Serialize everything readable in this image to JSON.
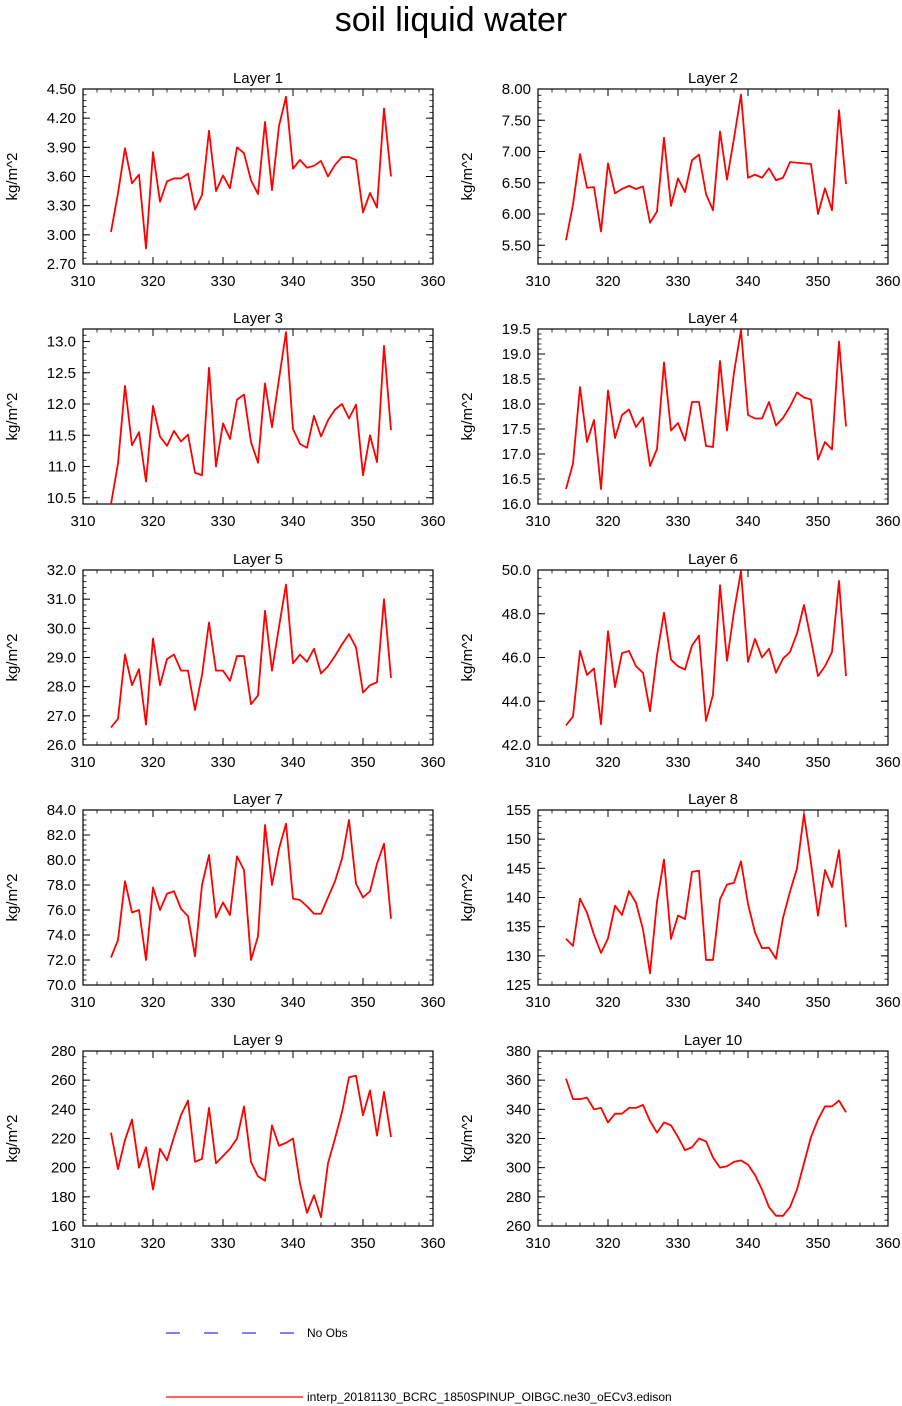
{
  "title": "soil liquid water",
  "chart_data": [
    {
      "type": "line",
      "title": "Layer 1",
      "ylabel": "kg/m^2",
      "xlim": [
        310,
        360
      ],
      "ylim": [
        2.7,
        4.5
      ],
      "xticks": [
        "310",
        "320",
        "330",
        "340",
        "350",
        "360"
      ],
      "yticks": [
        "2.70",
        "3.00",
        "3.30",
        "3.60",
        "3.90",
        "4.20",
        "4.50"
      ],
      "x": [
        314,
        315,
        316,
        317,
        318,
        319,
        320,
        321,
        322,
        323,
        324,
        325,
        326,
        327,
        328,
        329,
        330,
        331,
        332,
        333,
        334,
        335,
        336,
        337,
        338,
        339,
        340,
        341,
        342,
        343,
        344,
        345,
        346,
        347,
        348,
        349,
        350,
        351,
        352,
        353,
        354
      ],
      "series": [
        {
          "values": [
            3.03,
            3.43,
            3.89,
            3.53,
            3.62,
            2.86,
            3.85,
            3.34,
            3.55,
            3.58,
            3.58,
            3.63,
            3.26,
            3.41,
            4.07,
            3.45,
            3.61,
            3.48,
            3.9,
            3.84,
            3.56,
            3.42,
            4.16,
            3.46,
            4.12,
            4.42,
            3.68,
            3.77,
            3.69,
            3.71,
            3.76,
            3.6,
            3.72,
            3.8,
            3.8,
            3.77,
            3.23,
            3.43,
            3.28,
            4.3,
            3.6
          ]
        }
      ]
    },
    {
      "type": "line",
      "title": "Layer 2",
      "ylabel": "kg/m^2",
      "xlim": [
        310,
        360
      ],
      "ylim": [
        5.2,
        8.0
      ],
      "xticks": [
        "310",
        "320",
        "330",
        "340",
        "350",
        "360"
      ],
      "yticks": [
        "5.50",
        "6.00",
        "6.50",
        "7.00",
        "7.50",
        "8.00"
      ],
      "x": [
        314,
        315,
        316,
        317,
        318,
        319,
        320,
        321,
        322,
        323,
        324,
        325,
        326,
        327,
        328,
        329,
        330,
        331,
        332,
        333,
        334,
        335,
        336,
        337,
        338,
        339,
        340,
        341,
        342,
        343,
        344,
        345,
        346,
        347,
        348,
        349,
        350,
        351,
        352,
        353,
        354
      ],
      "series": [
        {
          "values": [
            5.58,
            6.15,
            6.96,
            6.42,
            6.43,
            5.72,
            6.81,
            6.33,
            6.4,
            6.45,
            6.4,
            6.44,
            5.86,
            6.04,
            7.22,
            6.13,
            6.57,
            6.35,
            6.86,
            6.95,
            6.32,
            6.06,
            7.32,
            6.55,
            7.21,
            7.91,
            6.58,
            6.63,
            6.58,
            6.73,
            6.54,
            6.58,
            6.83,
            6.82,
            6.81,
            6.8,
            6.0,
            6.41,
            6.06,
            7.66,
            6.48
          ]
        }
      ]
    },
    {
      "type": "line",
      "title": "Layer 3",
      "ylabel": "kg/m^2",
      "xlim": [
        310,
        360
      ],
      "ylim": [
        10.4,
        13.2
      ],
      "xticks": [
        "310",
        "320",
        "330",
        "340",
        "350",
        "360"
      ],
      "yticks": [
        "10.5",
        "11.0",
        "11.5",
        "12.0",
        "12.5",
        "13.0"
      ],
      "x": [
        314,
        315,
        316,
        317,
        318,
        319,
        320,
        321,
        322,
        323,
        324,
        325,
        326,
        327,
        328,
        329,
        330,
        331,
        332,
        333,
        334,
        335,
        336,
        337,
        338,
        339,
        340,
        341,
        342,
        343,
        344,
        345,
        346,
        347,
        348,
        349,
        350,
        351,
        352,
        353,
        354
      ],
      "series": [
        {
          "values": [
            10.4,
            11.05,
            12.29,
            11.34,
            11.55,
            10.76,
            11.97,
            11.48,
            11.33,
            11.57,
            11.4,
            11.51,
            10.9,
            10.86,
            12.58,
            11.0,
            11.69,
            11.44,
            12.07,
            12.15,
            11.39,
            11.06,
            12.33,
            11.63,
            12.4,
            13.15,
            11.6,
            11.36,
            11.3,
            11.81,
            11.48,
            11.74,
            11.91,
            12.0,
            11.77,
            11.99,
            10.86,
            11.5,
            11.07,
            12.93,
            11.58
          ]
        }
      ]
    },
    {
      "type": "line",
      "title": "Layer 4",
      "ylabel": "kg/m^2",
      "xlim": [
        310,
        360
      ],
      "ylim": [
        16.0,
        19.5
      ],
      "xticks": [
        "310",
        "320",
        "330",
        "340",
        "350",
        "360"
      ],
      "yticks": [
        "16.0",
        "16.5",
        "17.0",
        "17.5",
        "18.0",
        "18.5",
        "19.0",
        "19.5"
      ],
      "x": [
        314,
        315,
        316,
        317,
        318,
        319,
        320,
        321,
        322,
        323,
        324,
        325,
        326,
        327,
        328,
        329,
        330,
        331,
        332,
        333,
        334,
        335,
        336,
        337,
        338,
        339,
        340,
        341,
        342,
        343,
        344,
        345,
        346,
        347,
        348,
        349,
        350,
        351,
        352,
        353,
        354
      ],
      "series": [
        {
          "values": [
            16.3,
            16.81,
            18.34,
            17.24,
            17.68,
            16.3,
            18.27,
            17.32,
            17.78,
            17.89,
            17.54,
            17.73,
            16.76,
            17.1,
            18.83,
            17.47,
            17.62,
            17.27,
            18.04,
            18.04,
            17.16,
            17.14,
            18.86,
            17.47,
            18.63,
            19.48,
            17.78,
            17.71,
            17.71,
            18.04,
            17.57,
            17.72,
            17.95,
            18.23,
            18.13,
            18.09,
            16.89,
            17.24,
            17.09,
            19.25,
            17.55
          ]
        }
      ]
    },
    {
      "type": "line",
      "title": "Layer 5",
      "ylabel": "kg/m^2",
      "xlim": [
        310,
        360
      ],
      "ylim": [
        26.0,
        32.0
      ],
      "xticks": [
        "310",
        "320",
        "330",
        "340",
        "350",
        "360"
      ],
      "yticks": [
        "26.0",
        "27.0",
        "28.0",
        "29.0",
        "30.0",
        "31.0",
        "32.0"
      ],
      "x": [
        314,
        315,
        316,
        317,
        318,
        319,
        320,
        321,
        322,
        323,
        324,
        325,
        326,
        327,
        328,
        329,
        330,
        331,
        332,
        333,
        334,
        335,
        336,
        337,
        338,
        339,
        340,
        341,
        342,
        343,
        344,
        345,
        346,
        347,
        348,
        349,
        350,
        351,
        352,
        353,
        354
      ],
      "series": [
        {
          "values": [
            26.6,
            26.9,
            29.1,
            28.05,
            28.6,
            26.7,
            29.65,
            28.05,
            28.95,
            29.1,
            28.55,
            28.55,
            27.2,
            28.4,
            30.2,
            28.55,
            28.55,
            28.2,
            29.05,
            29.05,
            27.4,
            27.7,
            30.6,
            28.55,
            30.05,
            31.5,
            28.8,
            29.1,
            28.85,
            29.3,
            28.45,
            28.7,
            29.05,
            29.45,
            29.8,
            29.35,
            27.8,
            28.05,
            28.15,
            31.0,
            28.3
          ]
        }
      ]
    },
    {
      "type": "line",
      "title": "Layer 6",
      "ylabel": "kg/m^2",
      "xlim": [
        310,
        360
      ],
      "ylim": [
        42.0,
        50.0
      ],
      "xticks": [
        "310",
        "320",
        "330",
        "340",
        "350",
        "360"
      ],
      "yticks": [
        "42.0",
        "44.0",
        "46.0",
        "48.0",
        "50.0"
      ],
      "x": [
        314,
        315,
        316,
        317,
        318,
        319,
        320,
        321,
        322,
        323,
        324,
        325,
        326,
        327,
        328,
        329,
        330,
        331,
        332,
        333,
        334,
        335,
        336,
        337,
        338,
        339,
        340,
        341,
        342,
        343,
        344,
        345,
        346,
        347,
        348,
        349,
        350,
        351,
        352,
        353,
        354
      ],
      "series": [
        {
          "values": [
            42.9,
            43.3,
            46.3,
            45.2,
            45.5,
            42.95,
            47.2,
            44.65,
            46.2,
            46.3,
            45.6,
            45.3,
            43.55,
            46.1,
            48.05,
            45.9,
            45.6,
            45.45,
            46.55,
            47.0,
            43.1,
            44.3,
            49.3,
            45.85,
            48.1,
            49.95,
            45.8,
            46.85,
            46.0,
            46.4,
            45.3,
            45.95,
            46.25,
            47.1,
            48.4,
            46.8,
            45.15,
            45.6,
            46.25,
            49.5,
            45.15
          ]
        }
      ]
    },
    {
      "type": "line",
      "title": "Layer 7",
      "ylabel": "kg/m^2",
      "xlim": [
        310,
        360
      ],
      "ylim": [
        70.0,
        84.0
      ],
      "xticks": [
        "310",
        "320",
        "330",
        "340",
        "350",
        "360"
      ],
      "yticks": [
        "70.0",
        "72.0",
        "74.0",
        "76.0",
        "78.0",
        "80.0",
        "82.0",
        "84.0"
      ],
      "x": [
        314,
        315,
        316,
        317,
        318,
        319,
        320,
        321,
        322,
        323,
        324,
        325,
        326,
        327,
        328,
        329,
        330,
        331,
        332,
        333,
        334,
        335,
        336,
        337,
        338,
        339,
        340,
        341,
        342,
        343,
        344,
        345,
        346,
        347,
        348,
        349,
        350,
        351,
        352,
        353,
        354
      ],
      "series": [
        {
          "values": [
            72.2,
            73.6,
            78.3,
            75.8,
            76.0,
            72.0,
            77.8,
            76.0,
            77.3,
            77.5,
            76.1,
            75.5,
            72.3,
            78.0,
            80.4,
            75.4,
            76.6,
            75.6,
            80.3,
            79.2,
            72.0,
            73.9,
            82.8,
            78.0,
            80.9,
            82.9,
            76.9,
            76.8,
            76.3,
            75.7,
            75.7,
            77.0,
            78.3,
            80.1,
            83.2,
            78.1,
            77.0,
            77.5,
            79.7,
            81.3,
            75.3
          ]
        }
      ]
    },
    {
      "type": "line",
      "title": "Layer 8",
      "ylabel": "kg/m^2",
      "xlim": [
        310,
        360
      ],
      "ylim": [
        125,
        155
      ],
      "xticks": [
        "310",
        "320",
        "330",
        "340",
        "350",
        "360"
      ],
      "yticks": [
        "125",
        "130",
        "135",
        "140",
        "145",
        "150",
        "155"
      ],
      "x": [
        314,
        315,
        316,
        317,
        318,
        319,
        320,
        321,
        322,
        323,
        324,
        325,
        326,
        327,
        328,
        329,
        330,
        331,
        332,
        333,
        334,
        335,
        336,
        337,
        338,
        339,
        340,
        341,
        342,
        343,
        344,
        345,
        346,
        347,
        348,
        349,
        350,
        351,
        352,
        353,
        354
      ],
      "series": [
        {
          "values": [
            132.9,
            131.7,
            139.8,
            137.4,
            133.6,
            130.5,
            133.0,
            138.6,
            137.0,
            141.1,
            139.1,
            134.5,
            127.0,
            139.3,
            146.5,
            132.9,
            136.9,
            136.3,
            144.4,
            144.6,
            129.3,
            129.3,
            139.7,
            142.2,
            142.5,
            146.2,
            138.9,
            134.0,
            131.3,
            131.4,
            129.5,
            136.5,
            141.0,
            145.0,
            154.3,
            145.9,
            136.9,
            144.7,
            141.8,
            148.1,
            134.9
          ]
        }
      ]
    },
    {
      "type": "line",
      "title": "Layer 9",
      "ylabel": "kg/m^2",
      "xlim": [
        310,
        360
      ],
      "ylim": [
        160,
        280
      ],
      "xticks": [
        "310",
        "320",
        "330",
        "340",
        "350",
        "360"
      ],
      "yticks": [
        "160",
        "180",
        "200",
        "220",
        "240",
        "260",
        "280"
      ],
      "x": [
        314,
        315,
        316,
        317,
        318,
        319,
        320,
        321,
        322,
        323,
        324,
        325,
        326,
        327,
        328,
        329,
        330,
        331,
        332,
        333,
        334,
        335,
        336,
        337,
        338,
        339,
        340,
        341,
        342,
        343,
        344,
        345,
        346,
        347,
        348,
        349,
        350,
        351,
        352,
        353,
        354
      ],
      "series": [
        {
          "values": [
            224,
            199,
            219,
            233,
            200,
            214,
            185,
            213,
            205,
            221,
            236,
            246,
            204,
            206,
            241,
            203,
            208,
            213,
            220,
            242,
            204,
            194,
            191,
            229,
            215,
            217,
            220,
            189,
            169,
            181,
            166,
            203,
            220,
            238,
            262,
            263,
            236,
            253,
            222,
            252,
            221
          ]
        }
      ]
    },
    {
      "type": "line",
      "title": "Layer 10",
      "ylabel": "kg/m^2",
      "xlim": [
        310,
        360
      ],
      "ylim": [
        260,
        380
      ],
      "xticks": [
        "310",
        "320",
        "330",
        "340",
        "350",
        "360"
      ],
      "yticks": [
        "260",
        "280",
        "300",
        "320",
        "340",
        "360",
        "380"
      ],
      "x": [
        314,
        315,
        316,
        317,
        318,
        319,
        320,
        321,
        322,
        323,
        324,
        325,
        326,
        327,
        328,
        329,
        330,
        331,
        332,
        333,
        334,
        335,
        336,
        337,
        338,
        339,
        340,
        341,
        342,
        343,
        344,
        345,
        346,
        347,
        348,
        349,
        350,
        351,
        352,
        353,
        354
      ],
      "series": [
        {
          "values": [
            361,
            347,
            347,
            348,
            340,
            341,
            331,
            337,
            337,
            341,
            341,
            343,
            332,
            324,
            331,
            329,
            321,
            312,
            314,
            320,
            318,
            307,
            300,
            301,
            304,
            305,
            302,
            295,
            285,
            273,
            267,
            267,
            273,
            285,
            303,
            321,
            333,
            342,
            342,
            346,
            338
          ]
        }
      ]
    }
  ],
  "legend": {
    "items": [
      {
        "label": "No Obs",
        "color": "#3333ff",
        "dash": "14,24"
      },
      {
        "label": "interp_20181130_BCRC_1850SPINUP_OIBGC.ne30_oECv3.edison",
        "color": "#ff0000",
        "dash": ""
      }
    ]
  },
  "colors": {
    "series": "#ff0000",
    "axis": "#000000"
  }
}
